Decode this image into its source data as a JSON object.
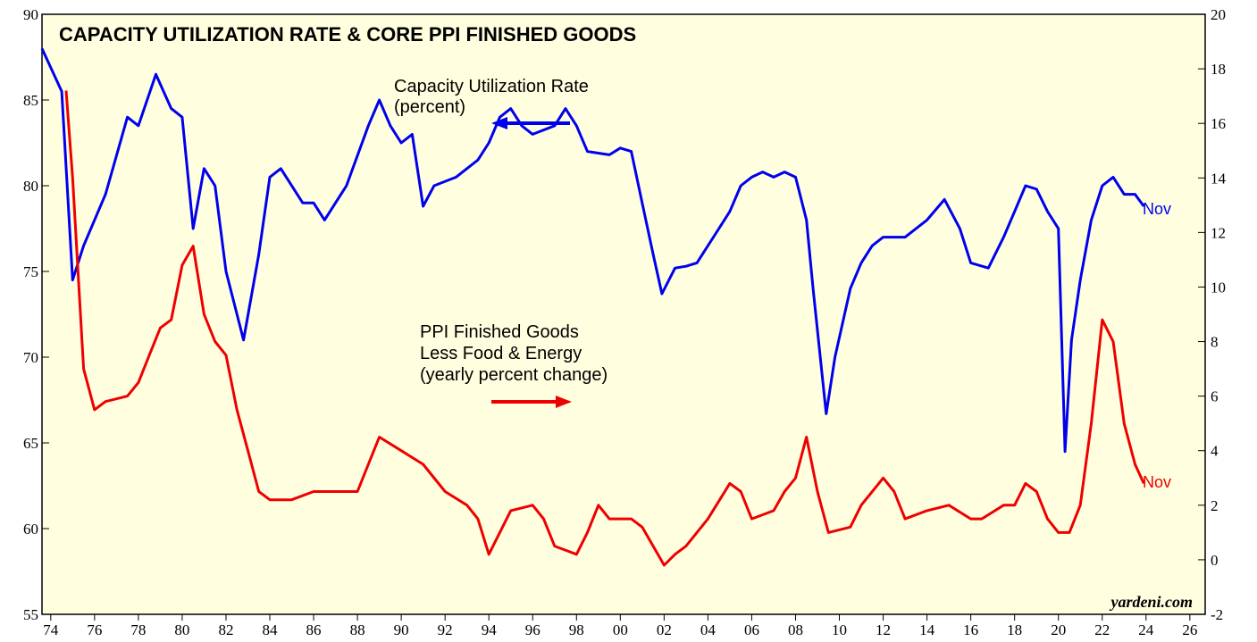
{
  "chart_data": {
    "type": "line",
    "title": "CAPACITY UTILIZATION RATE & CORE PPI FINISHED GOODS",
    "annotations": [
      "Capacity Utilization Rate",
      "(percent)",
      "PPI Finished Goods",
      "Less Food & Energy",
      "(yearly percent change)",
      "Nov",
      "Nov",
      "yardeni.com"
    ],
    "xlim": [
      1973.6,
      2026.7
    ],
    "xticks": [
      {
        "value": 1974,
        "label": "74"
      },
      {
        "value": 1976,
        "label": "76"
      },
      {
        "value": 1978,
        "label": "78"
      },
      {
        "value": 1980,
        "label": "80"
      },
      {
        "value": 1982,
        "label": "82"
      },
      {
        "value": 1984,
        "label": "84"
      },
      {
        "value": 1986,
        "label": "86"
      },
      {
        "value": 1988,
        "label": "88"
      },
      {
        "value": 1990,
        "label": "90"
      },
      {
        "value": 1992,
        "label": "92"
      },
      {
        "value": 1994,
        "label": "94"
      },
      {
        "value": 1996,
        "label": "96"
      },
      {
        "value": 1998,
        "label": "98"
      },
      {
        "value": 2000,
        "label": "00"
      },
      {
        "value": 2002,
        "label": "02"
      },
      {
        "value": 2004,
        "label": "04"
      },
      {
        "value": 2006,
        "label": "06"
      },
      {
        "value": 2008,
        "label": "08"
      },
      {
        "value": 2010,
        "label": "10"
      },
      {
        "value": 2012,
        "label": "12"
      },
      {
        "value": 2014,
        "label": "14"
      },
      {
        "value": 2016,
        "label": "16"
      },
      {
        "value": 2018,
        "label": "18"
      },
      {
        "value": 2020,
        "label": "20"
      },
      {
        "value": 2022,
        "label": "22"
      },
      {
        "value": 2024,
        "label": "24"
      },
      {
        "value": 2026,
        "label": "26"
      }
    ],
    "ylim": [
      55,
      90
    ],
    "yticks": [
      55,
      60,
      65,
      70,
      75,
      80,
      85,
      90
    ],
    "y2lim": [
      -2,
      20
    ],
    "y2ticks": [
      -2,
      0,
      2,
      4,
      6,
      8,
      10,
      12,
      14,
      16,
      18,
      20
    ],
    "series": [
      {
        "name": "Capacity Utilization Rate",
        "color": "#0000ee",
        "x": [
          1973.6,
          1974.5,
          1975.0,
          1975.5,
          1976.5,
          1977.5,
          1978.0,
          1978.8,
          1979.5,
          1980.0,
          1980.5,
          1981.0,
          1981.5,
          1982.0,
          1982.8,
          1983.5,
          1984.0,
          1984.5,
          1985.5,
          1986.0,
          1986.5,
          1987.5,
          1988.5,
          1989.0,
          1989.5,
          1990.0,
          1990.5,
          1991.0,
          1991.5,
          1992.5,
          1993.5,
          1994.0,
          1994.5,
          1995.0,
          1995.5,
          1996.0,
          1997.0,
          1997.5,
          1998.0,
          1998.5,
          1999.5,
          2000.0,
          2000.5,
          2001.0,
          2001.5,
          2001.9,
          2002.5,
          2003.0,
          2003.5,
          2004.0,
          2004.5,
          2005.0,
          2005.5,
          2006.0,
          2006.5,
          2007.0,
          2007.5,
          2008.0,
          2008.5,
          2008.8,
          2009.4,
          2009.8,
          2010.5,
          2011.0,
          2011.5,
          2012.0,
          2013.0,
          2014.0,
          2014.8,
          2015.5,
          2016.0,
          2016.8,
          2017.5,
          2018.0,
          2018.5,
          2019.0,
          2019.5,
          2020.0,
          2020.3,
          2020.6,
          2021.0,
          2021.5,
          2022.0,
          2022.5,
          2023.0,
          2023.5,
          2023.9
        ],
        "values": [
          88,
          85.5,
          74.5,
          76.5,
          79.5,
          84,
          83.5,
          86.5,
          84.5,
          84,
          77.5,
          81,
          80,
          75,
          71,
          76,
          80.5,
          81,
          79,
          79,
          78,
          80,
          83.5,
          85,
          83.5,
          82.5,
          83,
          78.8,
          80,
          80.5,
          81.5,
          82.5,
          84,
          84.5,
          83.5,
          83,
          83.5,
          84.5,
          83.5,
          82,
          81.8,
          82.2,
          82,
          79,
          76,
          73.7,
          75.2,
          75.3,
          75.5,
          76.5,
          77.5,
          78.5,
          80,
          80.5,
          80.8,
          80.5,
          80.8,
          80.5,
          78,
          74,
          66.7,
          70,
          74,
          75.5,
          76.5,
          77,
          77,
          78,
          79.2,
          77.5,
          75.5,
          75.2,
          77,
          78.5,
          80,
          79.8,
          78.5,
          77.5,
          64.5,
          71,
          74.5,
          78,
          80,
          80.5,
          79.5,
          79.5,
          78.8
        ]
      },
      {
        "name": "PPI Finished Goods Less Food & Energy",
        "color": "#ee0000",
        "axis": "y2",
        "x": [
          1974.7,
          1975.0,
          1975.5,
          1976.0,
          1976.5,
          1977.5,
          1978.0,
          1978.5,
          1979.0,
          1979.5,
          1980.0,
          1980.5,
          1981.0,
          1981.5,
          1982.0,
          1982.5,
          1983.0,
          1983.5,
          1984.0,
          1985.0,
          1986.0,
          1987.0,
          1988.0,
          1988.5,
          1989.0,
          1990.0,
          1991.0,
          1992.0,
          1993.0,
          1993.5,
          1994.0,
          1995.0,
          1996.0,
          1996.5,
          1997.0,
          1998.0,
          1998.5,
          1999.0,
          1999.5,
          2000.5,
          2001.0,
          2002.0,
          2002.5,
          2003.0,
          2004.0,
          2005.0,
          2005.5,
          2006.0,
          2007.0,
          2007.5,
          2008.0,
          2008.5,
          2009.0,
          2009.5,
          2010.5,
          2011.0,
          2012.0,
          2012.5,
          2013.0,
          2014.0,
          2015.0,
          2016.0,
          2016.5,
          2017.5,
          2018.0,
          2018.5,
          2019.0,
          2019.5,
          2020.0,
          2020.5,
          2021.0,
          2021.5,
          2022.0,
          2022.5,
          2023.0,
          2023.5,
          2023.9
        ],
        "values": [
          17.2,
          14,
          7,
          5.5,
          5.8,
          6,
          6.5,
          7.5,
          8.5,
          8.8,
          10.8,
          11.5,
          9,
          8,
          7.5,
          5.5,
          4,
          2.5,
          2.2,
          2.2,
          2.5,
          2.5,
          2.5,
          3.5,
          4.5,
          4,
          3.5,
          2.5,
          2,
          1.5,
          0.2,
          1.8,
          2,
          1.5,
          0.5,
          0.2,
          1,
          2,
          1.5,
          1.5,
          1.2,
          -0.2,
          0.2,
          0.5,
          1.5,
          2.8,
          2.5,
          1.5,
          1.8,
          2.5,
          3,
          4.5,
          2.5,
          1,
          1.2,
          2,
          3,
          2.5,
          1.5,
          1.8,
          2,
          1.5,
          1.5,
          2,
          2,
          2.8,
          2.5,
          1.5,
          1,
          1,
          2,
          5,
          8.8,
          8,
          5,
          3.5,
          2.8
        ]
      }
    ]
  }
}
